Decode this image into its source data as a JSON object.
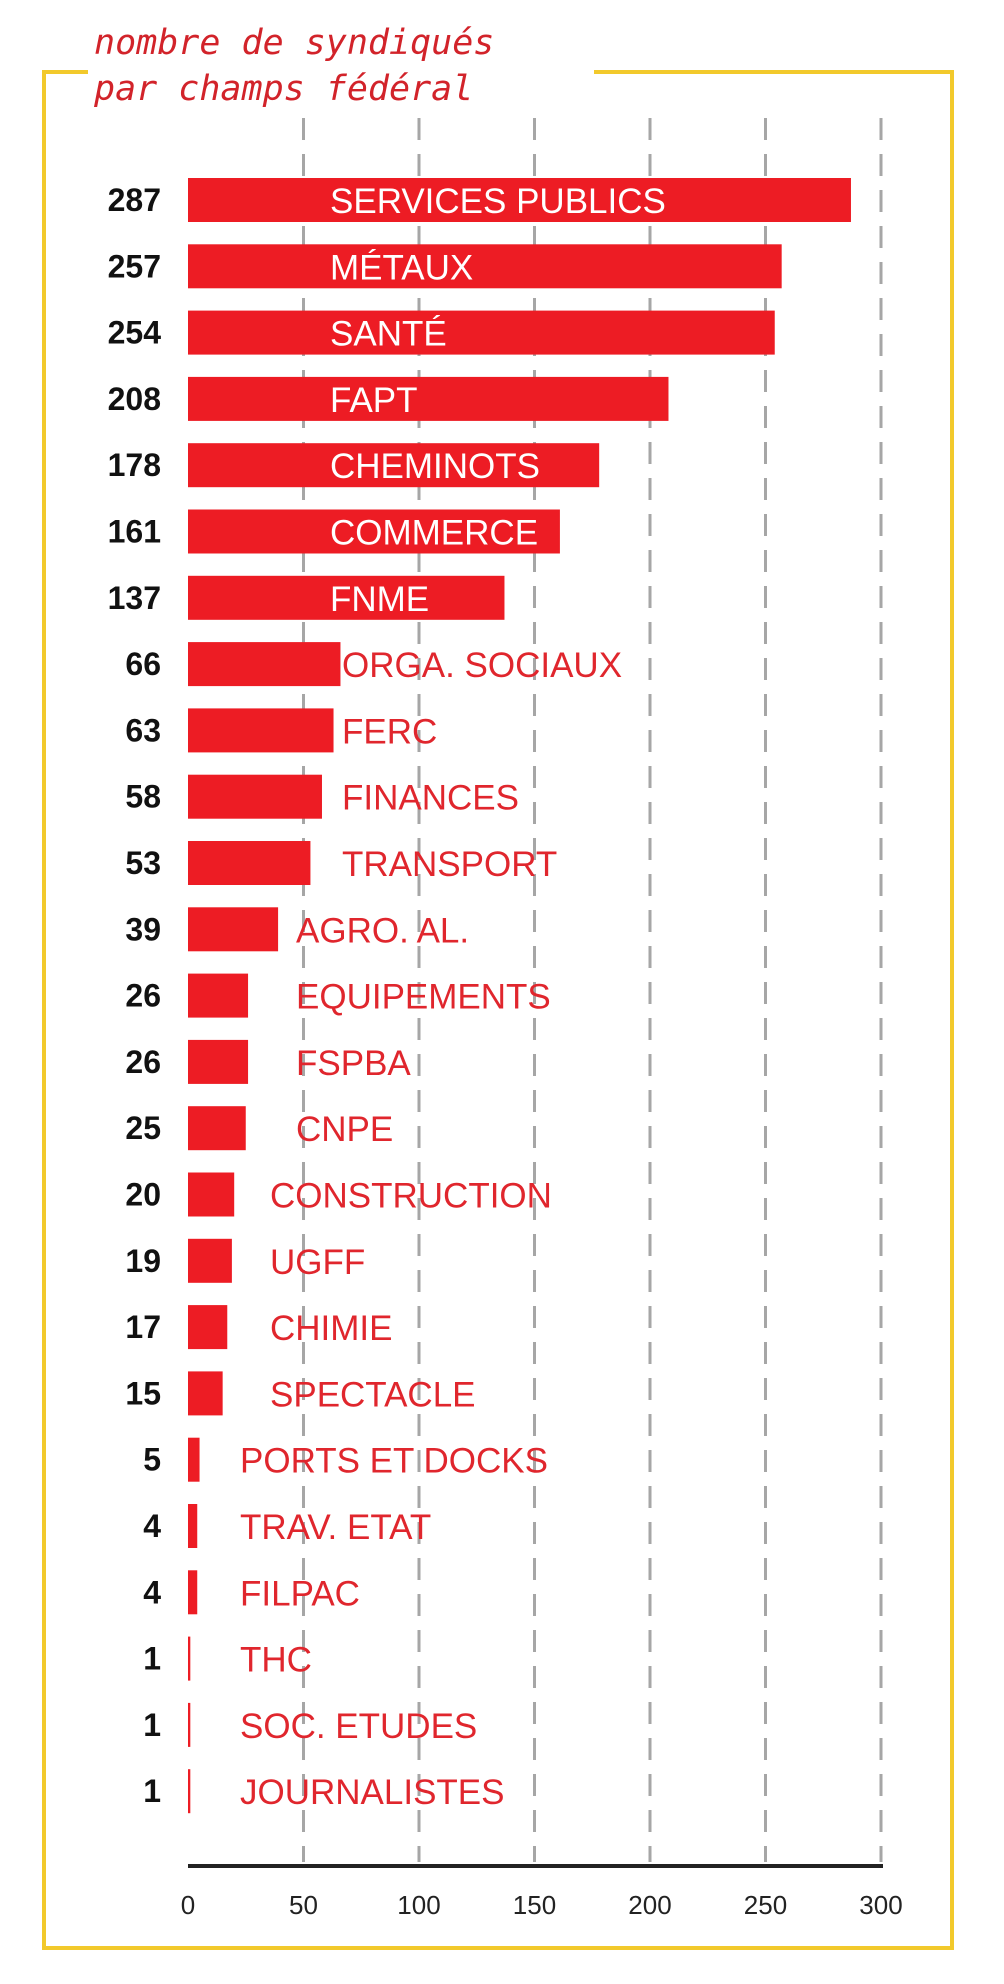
{
  "chart_data": {
    "type": "bar",
    "orientation": "horizontal",
    "title": [
      "nombre de syndiqués",
      "par champs fédéral"
    ],
    "categories": [
      "SERVICES PUBLICS",
      "MÉTAUX",
      "SANTÉ",
      "FAPT",
      "CHEMINOTS",
      "COMMERCE",
      "FNME",
      "ORGA. SOCIAUX",
      "FERC",
      "FINANCES",
      "TRANSPORT",
      "AGRO. AL.",
      "EQUIPEMENTS",
      "FSPBA",
      "CNPE",
      "CONSTRUCTION",
      "UGFF",
      "CHIMIE",
      "SPECTACLE",
      "PORTS ET DOCKS",
      "TRAV. ETAT",
      "FILPAC",
      "THC",
      "SOC. ETUDES",
      "JOURNALISTES"
    ],
    "values": [
      287,
      257,
      254,
      208,
      178,
      161,
      137,
      66,
      63,
      58,
      53,
      39,
      26,
      26,
      25,
      20,
      19,
      17,
      15,
      5,
      4,
      4,
      1,
      1,
      1
    ],
    "xlim": [
      0,
      300
    ],
    "xticks": [
      0,
      50,
      100,
      150,
      200,
      250,
      300
    ],
    "grid": "vertical-dashed",
    "colors": {
      "bar": "#ed1c24",
      "inside_label": "#ffffff",
      "outside_label": "#e0262d",
      "frame": "#f2c92b",
      "grid": "#a6a6a6",
      "axis": "#222222"
    }
  }
}
